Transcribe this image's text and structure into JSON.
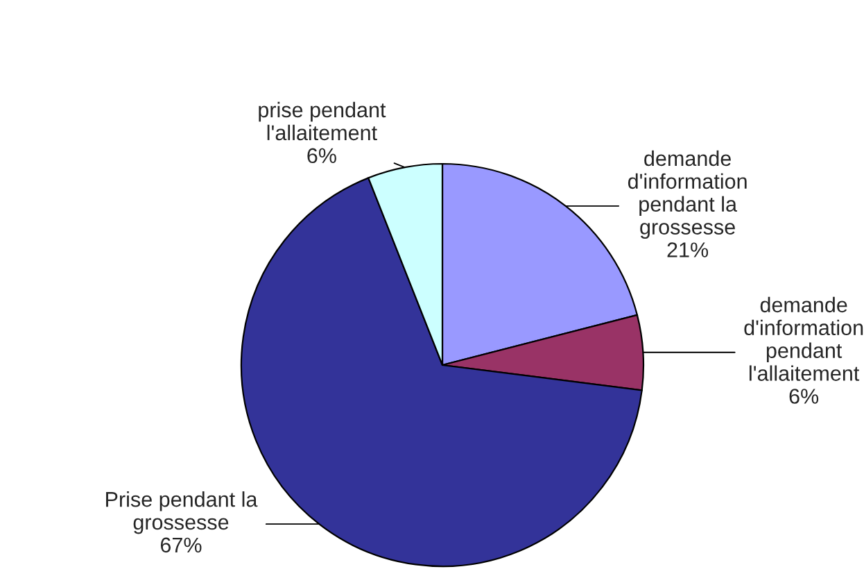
{
  "chart_data": {
    "type": "pie",
    "categories": [
      "demande\nd'information\npendant la\ngrossesse",
      "demande\nd'information\npendant\nl'allaitement",
      "Prise pendant la\ngrossesse",
      "prise pendant\nl'allaitement"
    ],
    "values": [
      21,
      6,
      67,
      6
    ],
    "value_labels": [
      "21%",
      "6%",
      "67%",
      "6%"
    ],
    "colors": [
      "#9999ff",
      "#993366",
      "#333399",
      "#ccffff"
    ],
    "legend": false
  }
}
